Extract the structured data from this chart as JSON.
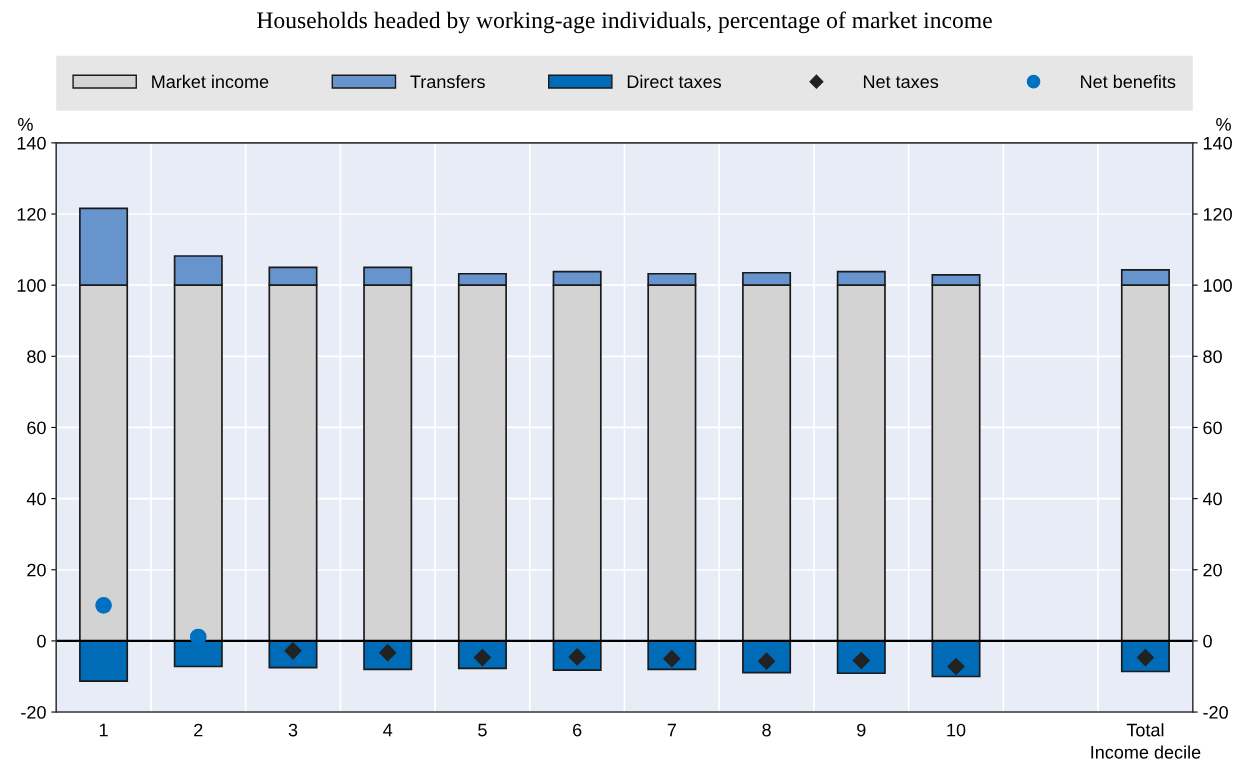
{
  "chart_data": {
    "type": "bar",
    "stacked": true,
    "title": "Households headed by working-age individuals, percentage of market income",
    "xlabel": "Income decile",
    "ylabel": "%",
    "y2label": "%",
    "categories": [
      "1",
      "2",
      "3",
      "4",
      "5",
      "6",
      "7",
      "8",
      "9",
      "10",
      null,
      "Total"
    ],
    "series": [
      {
        "name": "Market income",
        "color": "#d3d3d3",
        "values": [
          100,
          100,
          100,
          100,
          100,
          100,
          100,
          100,
          100,
          100,
          null,
          100
        ]
      },
      {
        "name": "Transfers",
        "color": "#6794cc",
        "values": [
          21.6,
          8.2,
          5.0,
          5.0,
          3.2,
          3.8,
          3.2,
          3.5,
          3.8,
          2.9,
          null,
          4.3
        ]
      },
      {
        "name": "Direct taxes",
        "color": "#006bb6",
        "values": [
          -11.3,
          -7.2,
          -7.5,
          -8.0,
          -7.7,
          -8.2,
          -8.0,
          -8.9,
          -9.1,
          -10.0,
          null,
          -8.6
        ]
      },
      {
        "name": "Net taxes",
        "type": "scatter",
        "marker": "diamond",
        "color": "#222222",
        "values": [
          null,
          null,
          -2.8,
          -3.3,
          -4.7,
          -4.5,
          -5.0,
          -5.7,
          -5.5,
          -7.2,
          null,
          -4.7
        ]
      },
      {
        "name": "Net benefits",
        "type": "scatter",
        "marker": "circle",
        "color": "#0070c0",
        "values": [
          10.0,
          1.1,
          null,
          null,
          null,
          null,
          null,
          null,
          null,
          null,
          null,
          null
        ]
      }
    ],
    "ylim": [
      -20,
      140
    ],
    "yticks": [
      -20,
      0,
      20,
      40,
      60,
      80,
      100,
      120,
      140
    ],
    "y2lim": [
      -20,
      140
    ],
    "y2ticks": [
      -20,
      0,
      20,
      40,
      60,
      80,
      100,
      120,
      140
    ],
    "grid": true,
    "legend": "top"
  }
}
